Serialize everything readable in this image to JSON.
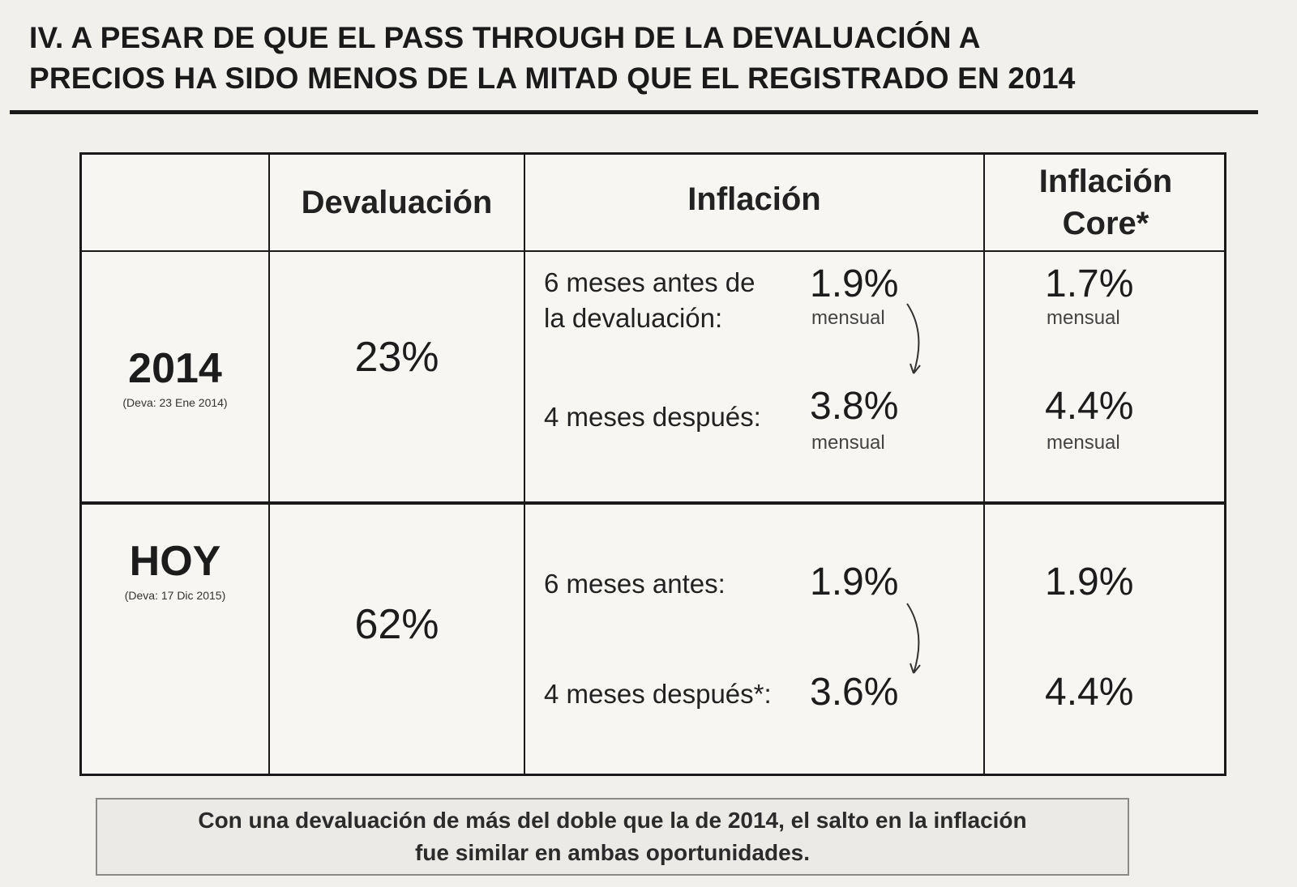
{
  "title": {
    "line1": "IV. A PESAR DE QUE EL PASS THROUGH DE LA DEVALUACIÓN A",
    "line2": "PRECIOS HA SIDO MENOS DE LA MITAD QUE EL REGISTRADO EN 2014"
  },
  "table": {
    "headers": {
      "devaluacion": "Devaluación",
      "inflacion": "Inflación",
      "core_line1": "Inflación",
      "core_line2": "Core*"
    },
    "rows": [
      {
        "label": "2014",
        "note": "(Deva: 23 Ene 2014)",
        "devaluacion": "23%",
        "before_label_line1": "6 meses antes de",
        "before_label_line2": "la devaluación:",
        "before_value": "1.9%",
        "before_unit": "mensual",
        "after_label": "4 meses después:",
        "after_value": "3.8%",
        "after_unit": "mensual",
        "core_before": "1.7%",
        "core_before_unit": "mensual",
        "core_after": "4.4%",
        "core_after_unit": "mensual"
      },
      {
        "label": "HOY",
        "note": "(Deva: 17 Dic 2015)",
        "devaluacion": "62%",
        "before_label": "6 meses antes:",
        "before_value": "1.9%",
        "after_label": "4 meses después*:",
        "after_value": "3.6%",
        "core_before": "1.9%",
        "core_after": "4.4%"
      }
    ]
  },
  "footer": {
    "line1": "Con una devaluación de más del doble que la de 2014, el salto en la inflación",
    "line2": "fue similar en ambas oportunidades."
  }
}
